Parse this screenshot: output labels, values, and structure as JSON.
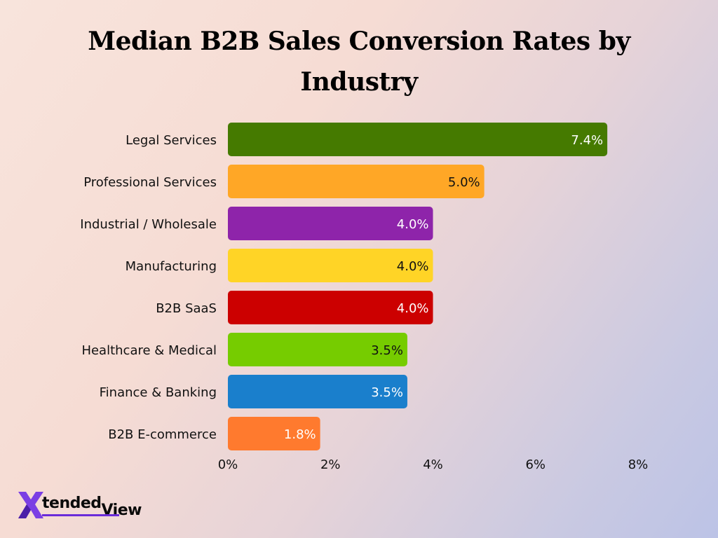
{
  "chart_data": {
    "type": "bar",
    "orientation": "horizontal",
    "title_line1": "Median B2B Sales Conversion Rates by",
    "title_line2": "Industry",
    "categories": [
      "Legal Services",
      "Professional Services",
      "Industrial / Wholesale",
      "Manufacturing",
      "B2B SaaS",
      "Healthcare & Medical",
      "Finance & Banking",
      "B2B E-commerce"
    ],
    "values": [
      7.4,
      5.0,
      4.0,
      4.0,
      4.0,
      3.5,
      3.5,
      1.8
    ],
    "value_labels": [
      "7.4%",
      "5.0%",
      "4.0%",
      "4.0%",
      "4.0%",
      "3.5%",
      "3.5%",
      "1.8%"
    ],
    "colors": [
      "#457a00",
      "#ffa726",
      "#8e24aa",
      "#ffd426",
      "#cc0000",
      "#76cc00",
      "#1a7fcc",
      "#ff7a2e"
    ],
    "value_label_colors": [
      "#ffffff",
      "#111111",
      "#ffffff",
      "#111111",
      "#ffffff",
      "#111111",
      "#ffffff",
      "#ffffff"
    ],
    "x_ticks": [
      0,
      2,
      4,
      6,
      8
    ],
    "x_tick_labels": [
      "0%",
      "2%",
      "4%",
      "6%",
      "8%"
    ],
    "xlim": [
      0,
      8
    ],
    "grid": false,
    "legend": "none"
  },
  "branding": {
    "logo_part1": "tended",
    "logo_part2": "View",
    "logo_icon": "x-logo-icon"
  }
}
